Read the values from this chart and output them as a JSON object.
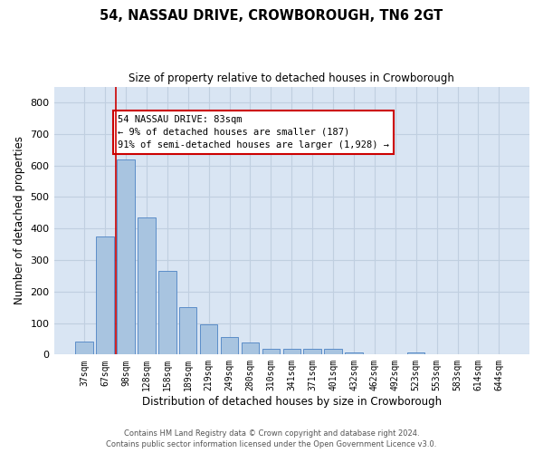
{
  "title": "54, NASSAU DRIVE, CROWBOROUGH, TN6 2GT",
  "subtitle": "Size of property relative to detached houses in Crowborough",
  "xlabel": "Distribution of detached houses by size in Crowborough",
  "ylabel": "Number of detached properties",
  "footer_line1": "Contains HM Land Registry data © Crown copyright and database right 2024.",
  "footer_line2": "Contains public sector information licensed under the Open Government Licence v3.0.",
  "bar_labels": [
    "37sqm",
    "67sqm",
    "98sqm",
    "128sqm",
    "158sqm",
    "189sqm",
    "219sqm",
    "249sqm",
    "280sqm",
    "310sqm",
    "341sqm",
    "371sqm",
    "401sqm",
    "432sqm",
    "462sqm",
    "492sqm",
    "523sqm",
    "553sqm",
    "583sqm",
    "614sqm",
    "644sqm"
  ],
  "bar_values": [
    40,
    375,
    620,
    435,
    265,
    150,
    97,
    55,
    37,
    18,
    18,
    18,
    18,
    8,
    0,
    0,
    8,
    0,
    0,
    0,
    0
  ],
  "bar_color": "#a8c4e0",
  "bar_edge_color": "#5b8dc8",
  "grid_color": "#c0cfe0",
  "background_color": "#d9e5f3",
  "property_line_x": 1.5,
  "annotation_text": "54 NASSAU DRIVE: 83sqm\n← 9% of detached houses are smaller (187)\n91% of semi-detached houses are larger (1,928) →",
  "annotation_box_color": "#ffffff",
  "annotation_border_color": "#cc0000",
  "property_line_color": "#cc0000",
  "ylim": [
    0,
    850
  ],
  "yticks": [
    0,
    100,
    200,
    300,
    400,
    500,
    600,
    700,
    800
  ],
  "figwidth": 6.0,
  "figheight": 5.0,
  "dpi": 100
}
